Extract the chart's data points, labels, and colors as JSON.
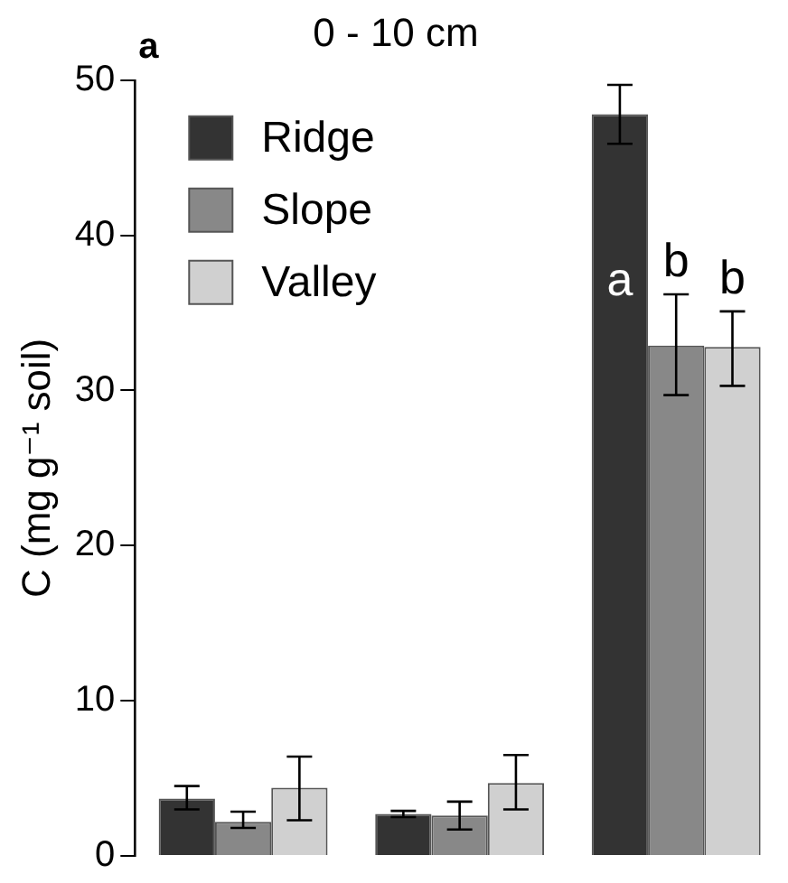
{
  "chart_data": {
    "type": "bar",
    "title": "0 - 10 cm",
    "ylabel": "C (mg g⁻¹ soil)",
    "annotations": [
      "a"
    ],
    "categories": [
      null,
      null,
      null
    ],
    "series": [
      {
        "name": "Ridge",
        "color": "#333333",
        "values": [
          3.7,
          2.7,
          47.8
        ],
        "errors": [
          [
            3.0,
            4.5
          ],
          [
            2.5,
            2.9
          ],
          [
            45.9,
            49.7
          ]
        ],
        "value_labels": [
          null,
          null,
          "a"
        ]
      },
      {
        "name": "Slope",
        "color": "#888888",
        "values": [
          2.2,
          2.6,
          32.9
        ],
        "errors": [
          [
            1.8,
            2.85
          ],
          [
            1.7,
            3.5
          ],
          [
            29.7,
            36.2
          ]
        ],
        "value_labels": [
          null,
          null,
          "b"
        ]
      },
      {
        "name": "Valley",
        "color": "#d0d0d0",
        "values": [
          4.4,
          4.7,
          32.8
        ],
        "errors": [
          [
            2.3,
            6.4
          ],
          [
            3.0,
            6.5
          ],
          [
            30.3,
            35.1
          ]
        ],
        "value_labels": [
          null,
          null,
          "b"
        ]
      }
    ],
    "ylim": [
      0,
      50
    ],
    "yticks": [
      0,
      10,
      20,
      30,
      40,
      50
    ],
    "grid": false,
    "legend": "top left"
  }
}
